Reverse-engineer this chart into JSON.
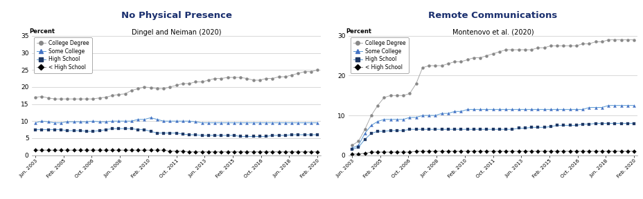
{
  "left_title": "No Physical Presence",
  "left_subtitle": "Dingel and Neiman (2020)",
  "right_title": "Remote Communications",
  "right_subtitle": "Montenovo et al. (2020)",
  "ylabel": "Percent",
  "left_ylim": [
    0,
    35
  ],
  "right_ylim": [
    0,
    30
  ],
  "left_yticks": [
    0,
    5,
    10,
    15,
    20,
    25,
    30,
    35
  ],
  "right_yticks": [
    0,
    10,
    20,
    30
  ],
  "xtick_labels": [
    "Jun. 2003",
    "Feb. 2005",
    "Oct. 2006",
    "Jun. 2008",
    "Feb. 2010",
    "Oct. 2011",
    "Jun. 2013",
    "Feb. 2015",
    "Oct. 2016",
    "Jun. 2018",
    "Feb. 2020"
  ],
  "series_labels": [
    "College Degree",
    "Some College",
    "High School",
    "< High School"
  ],
  "line_colors": [
    "#aaaaaa",
    "#5b9bd5",
    "#5b9bd5",
    "#888888"
  ],
  "marker_colors": [
    "#888888",
    "#4472c4",
    "#1f3864",
    "#000000"
  ],
  "markers": [
    "o",
    "^",
    "s",
    "D"
  ],
  "left_data": {
    "college": [
      17.0,
      17.2,
      16.8,
      16.5,
      16.5,
      16.5,
      16.5,
      16.5,
      16.5,
      16.5,
      16.8,
      17.0,
      17.5,
      17.8,
      18.0,
      19.0,
      19.5,
      20.0,
      19.8,
      19.5,
      19.5,
      20.0,
      20.5,
      21.0,
      21.0,
      21.5,
      21.5,
      22.0,
      22.5,
      22.5,
      22.8,
      22.8,
      22.8,
      22.5,
      22.0,
      22.0,
      22.5,
      22.5,
      23.0,
      23.0,
      23.5,
      24.0,
      24.5,
      24.5,
      25.0
    ],
    "some_college": [
      9.5,
      10.0,
      9.8,
      9.5,
      9.5,
      9.8,
      9.8,
      9.8,
      9.8,
      10.0,
      9.8,
      9.8,
      10.0,
      10.0,
      10.0,
      10.0,
      10.5,
      10.5,
      11.0,
      10.5,
      10.0,
      10.0,
      10.0,
      10.0,
      10.0,
      9.8,
      9.5,
      9.5,
      9.5,
      9.5,
      9.5,
      9.5,
      9.5,
      9.5,
      9.5,
      9.5,
      9.5,
      9.5,
      9.5,
      9.5,
      9.5,
      9.5,
      9.5,
      9.5,
      9.5
    ],
    "high_school": [
      7.5,
      7.5,
      7.5,
      7.5,
      7.5,
      7.2,
      7.2,
      7.2,
      7.0,
      7.0,
      7.2,
      7.5,
      7.8,
      7.8,
      7.8,
      7.8,
      7.5,
      7.5,
      7.0,
      6.5,
      6.5,
      6.5,
      6.5,
      6.2,
      6.0,
      6.0,
      5.8,
      5.8,
      5.8,
      5.8,
      5.8,
      5.8,
      5.5,
      5.5,
      5.5,
      5.5,
      5.5,
      5.8,
      5.8,
      5.8,
      6.0,
      6.0,
      6.0,
      6.0,
      6.0
    ],
    "less_hs": [
      1.5,
      1.5,
      1.5,
      1.5,
      1.5,
      1.5,
      1.5,
      1.5,
      1.5,
      1.5,
      1.5,
      1.5,
      1.5,
      1.5,
      1.5,
      1.5,
      1.5,
      1.5,
      1.5,
      1.5,
      1.5,
      1.2,
      1.2,
      1.2,
      1.0,
      1.0,
      1.0,
      1.0,
      1.0,
      1.0,
      1.0,
      1.0,
      1.0,
      1.0,
      1.0,
      1.0,
      1.0,
      1.0,
      1.0,
      1.0,
      1.0,
      1.0,
      1.0,
      1.0,
      1.0
    ]
  },
  "right_data": {
    "college": [
      2.5,
      3.5,
      6.5,
      10.0,
      12.5,
      14.5,
      15.0,
      15.0,
      15.0,
      15.5,
      18.0,
      22.0,
      22.5,
      22.5,
      22.5,
      23.0,
      23.5,
      23.5,
      24.0,
      24.5,
      24.5,
      25.0,
      25.5,
      26.0,
      26.5,
      26.5,
      26.5,
      26.5,
      26.5,
      27.0,
      27.0,
      27.5,
      27.5,
      27.5,
      27.5,
      27.5,
      28.0,
      28.0,
      28.5,
      28.5,
      29.0,
      29.0,
      29.0,
      29.0,
      29.0
    ],
    "some_college": [
      1.8,
      2.5,
      5.5,
      7.5,
      8.5,
      9.0,
      9.0,
      9.0,
      9.0,
      9.5,
      9.5,
      10.0,
      10.0,
      10.0,
      10.5,
      10.5,
      11.0,
      11.0,
      11.5,
      11.5,
      11.5,
      11.5,
      11.5,
      11.5,
      11.5,
      11.5,
      11.5,
      11.5,
      11.5,
      11.5,
      11.5,
      11.5,
      11.5,
      11.5,
      11.5,
      11.5,
      11.5,
      12.0,
      12.0,
      12.0,
      12.5,
      12.5,
      12.5,
      12.5,
      12.5
    ],
    "high_school": [
      1.5,
      2.0,
      4.0,
      5.5,
      6.0,
      6.0,
      6.2,
      6.2,
      6.2,
      6.5,
      6.5,
      6.5,
      6.5,
      6.5,
      6.5,
      6.5,
      6.5,
      6.5,
      6.5,
      6.5,
      6.5,
      6.5,
      6.5,
      6.5,
      6.5,
      6.5,
      6.8,
      6.8,
      7.0,
      7.0,
      7.0,
      7.2,
      7.5,
      7.5,
      7.5,
      7.5,
      7.8,
      7.8,
      8.0,
      8.0,
      8.0,
      8.0,
      8.0,
      8.0,
      8.0
    ],
    "less_hs": [
      0.3,
      0.3,
      0.5,
      0.8,
      0.8,
      0.8,
      0.8,
      0.8,
      0.8,
      0.8,
      1.0,
      1.0,
      1.0,
      1.0,
      1.0,
      1.0,
      1.0,
      1.0,
      1.0,
      1.0,
      1.0,
      1.0,
      1.0,
      1.0,
      1.0,
      1.0,
      1.0,
      1.0,
      1.0,
      1.0,
      1.0,
      1.0,
      1.0,
      1.0,
      1.0,
      1.0,
      1.0,
      1.0,
      1.0,
      1.0,
      1.0,
      1.0,
      1.0,
      1.0,
      1.0
    ]
  },
  "n_points": 45,
  "background_color": "#ffffff",
  "grid_color": "#c8c8c8",
  "title_color": "#1a2f6e",
  "subtitle_color": "#000000"
}
